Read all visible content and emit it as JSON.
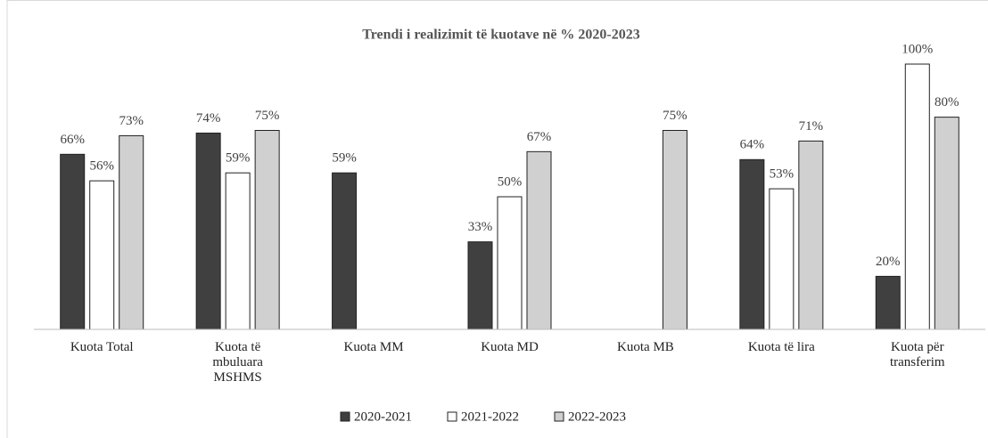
{
  "chart_data": {
    "type": "bar",
    "title": "Trendi  i realizimit  të kuotave në %  2020-2023",
    "categories": [
      "Kuota Total",
      "Kuota të mbuluara MSHMS",
      "Kuota MM",
      "Kuota MD",
      "Kuota MB",
      "Kuota të lira",
      "Kuota për transferim"
    ],
    "series": [
      {
        "name": "2020-2021",
        "color": "#404040",
        "values": [
          66,
          74,
          59,
          33,
          null,
          64,
          20
        ],
        "value_labels": [
          "66%",
          "74%",
          "59%",
          "33%",
          null,
          "64%",
          "20%"
        ]
      },
      {
        "name": "2021-2022",
        "color": "#ffffff",
        "values": [
          56,
          59,
          null,
          50,
          null,
          53,
          100
        ],
        "value_labels": [
          "56%",
          "59%",
          null,
          "50%",
          null,
          "53%",
          "100%"
        ]
      },
      {
        "name": "2022-2023",
        "color": "#d0d0d0",
        "values": [
          73,
          75,
          null,
          67,
          75,
          71,
          80
        ],
        "value_labels": [
          "73%",
          "75%",
          null,
          "67%",
          "75%",
          "71%",
          "80%"
        ]
      }
    ],
    "ylim": [
      0,
      100
    ]
  }
}
